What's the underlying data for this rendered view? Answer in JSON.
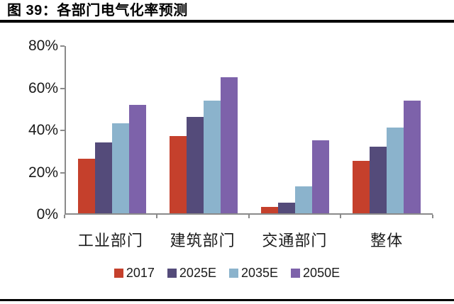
{
  "figure": {
    "title": "图 39：各部门电气化率预测"
  },
  "chart_data": {
    "type": "bar",
    "title": "各部门电气化率预测",
    "categories": [
      "工业部门",
      "建筑部门",
      "交通部门",
      "整体"
    ],
    "series": [
      {
        "name": "2017",
        "color": "#c5402c",
        "values": [
          26,
          37,
          3,
          25
        ]
      },
      {
        "name": "2025E",
        "color": "#544b7a",
        "values": [
          34,
          46,
          5,
          32
        ]
      },
      {
        "name": "2035E",
        "color": "#8bb3cc",
        "values": [
          43,
          54,
          13,
          41
        ]
      },
      {
        "name": "2050E",
        "color": "#7d62aa",
        "values": [
          52,
          65,
          35,
          54
        ]
      }
    ],
    "xlabel": "",
    "ylabel": "",
    "ylim": [
      0,
      80
    ],
    "yticks": [
      0,
      20,
      40,
      60,
      80
    ],
    "ytick_labels": [
      "0%",
      "20%",
      "40%",
      "60%",
      "80%"
    ],
    "value_unit": "%",
    "grid": false,
    "legend_position": "bottom"
  },
  "style": {
    "axis_color": "#8a8a8a",
    "text_color": "#1a1a1a",
    "rule_color": "#000000",
    "background": "#ffffff"
  }
}
